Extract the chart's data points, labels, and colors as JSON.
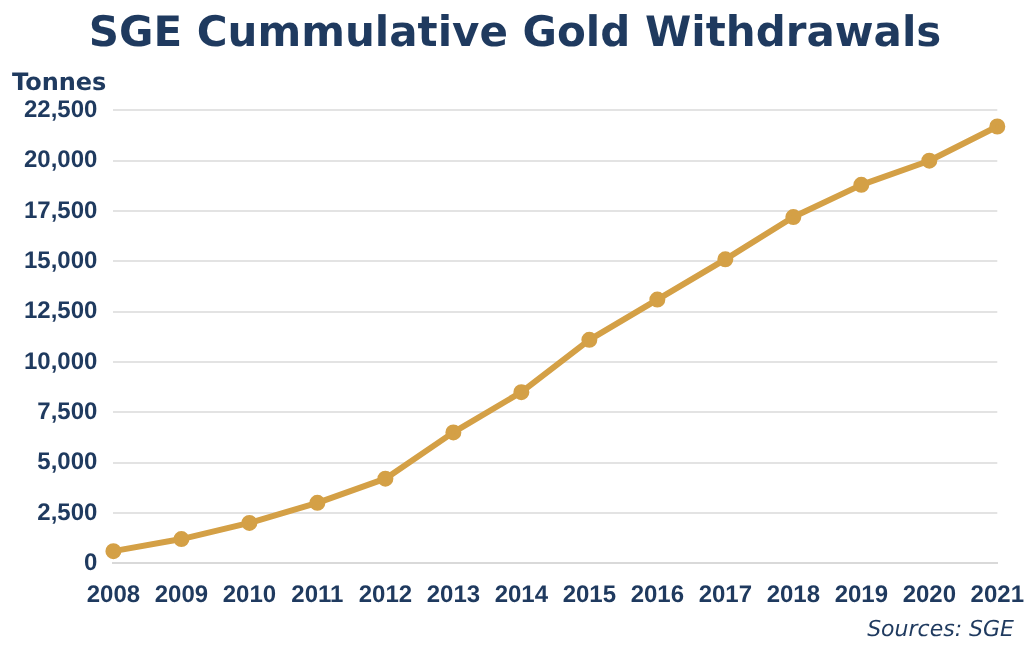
{
  "chart_data": {
    "type": "line",
    "title": "SGE Cummulative Gold Withdrawals",
    "ylabel": "Tonnes",
    "annotations": [
      "Sources: SGE"
    ],
    "categories": [
      "2008",
      "2009",
      "2010",
      "2011",
      "2012",
      "2013",
      "2014",
      "2015",
      "2016",
      "2017",
      "2018",
      "2019",
      "2020",
      "2021"
    ],
    "series": [
      {
        "color": "#d4a046",
        "values": [
          600,
          1200,
          2000,
          3000,
          4200,
          6500,
          8500,
          11100,
          13100,
          15100,
          17200,
          18800,
          20000,
          21700
        ]
      }
    ],
    "ylim": [
      0,
      22500
    ],
    "yticks": [
      0,
      {
        "value": 2500,
        "label": "2,500"
      },
      {
        "value": 5000,
        "label": "5,000"
      },
      {
        "value": 7500,
        "label": "7,500"
      },
      {
        "value": 10000,
        "label": "10,000"
      },
      {
        "value": 12500,
        "label": "12,500"
      },
      {
        "value": 15000,
        "label": "15,000"
      },
      {
        "value": 17500,
        "label": "17,500"
      },
      {
        "value": 20000,
        "label": "20,000"
      },
      {
        "value": 22500,
        "label": "22,500"
      }
    ],
    "grid": "y",
    "legend": false,
    "marker": "circle",
    "line_style": "solid"
  }
}
